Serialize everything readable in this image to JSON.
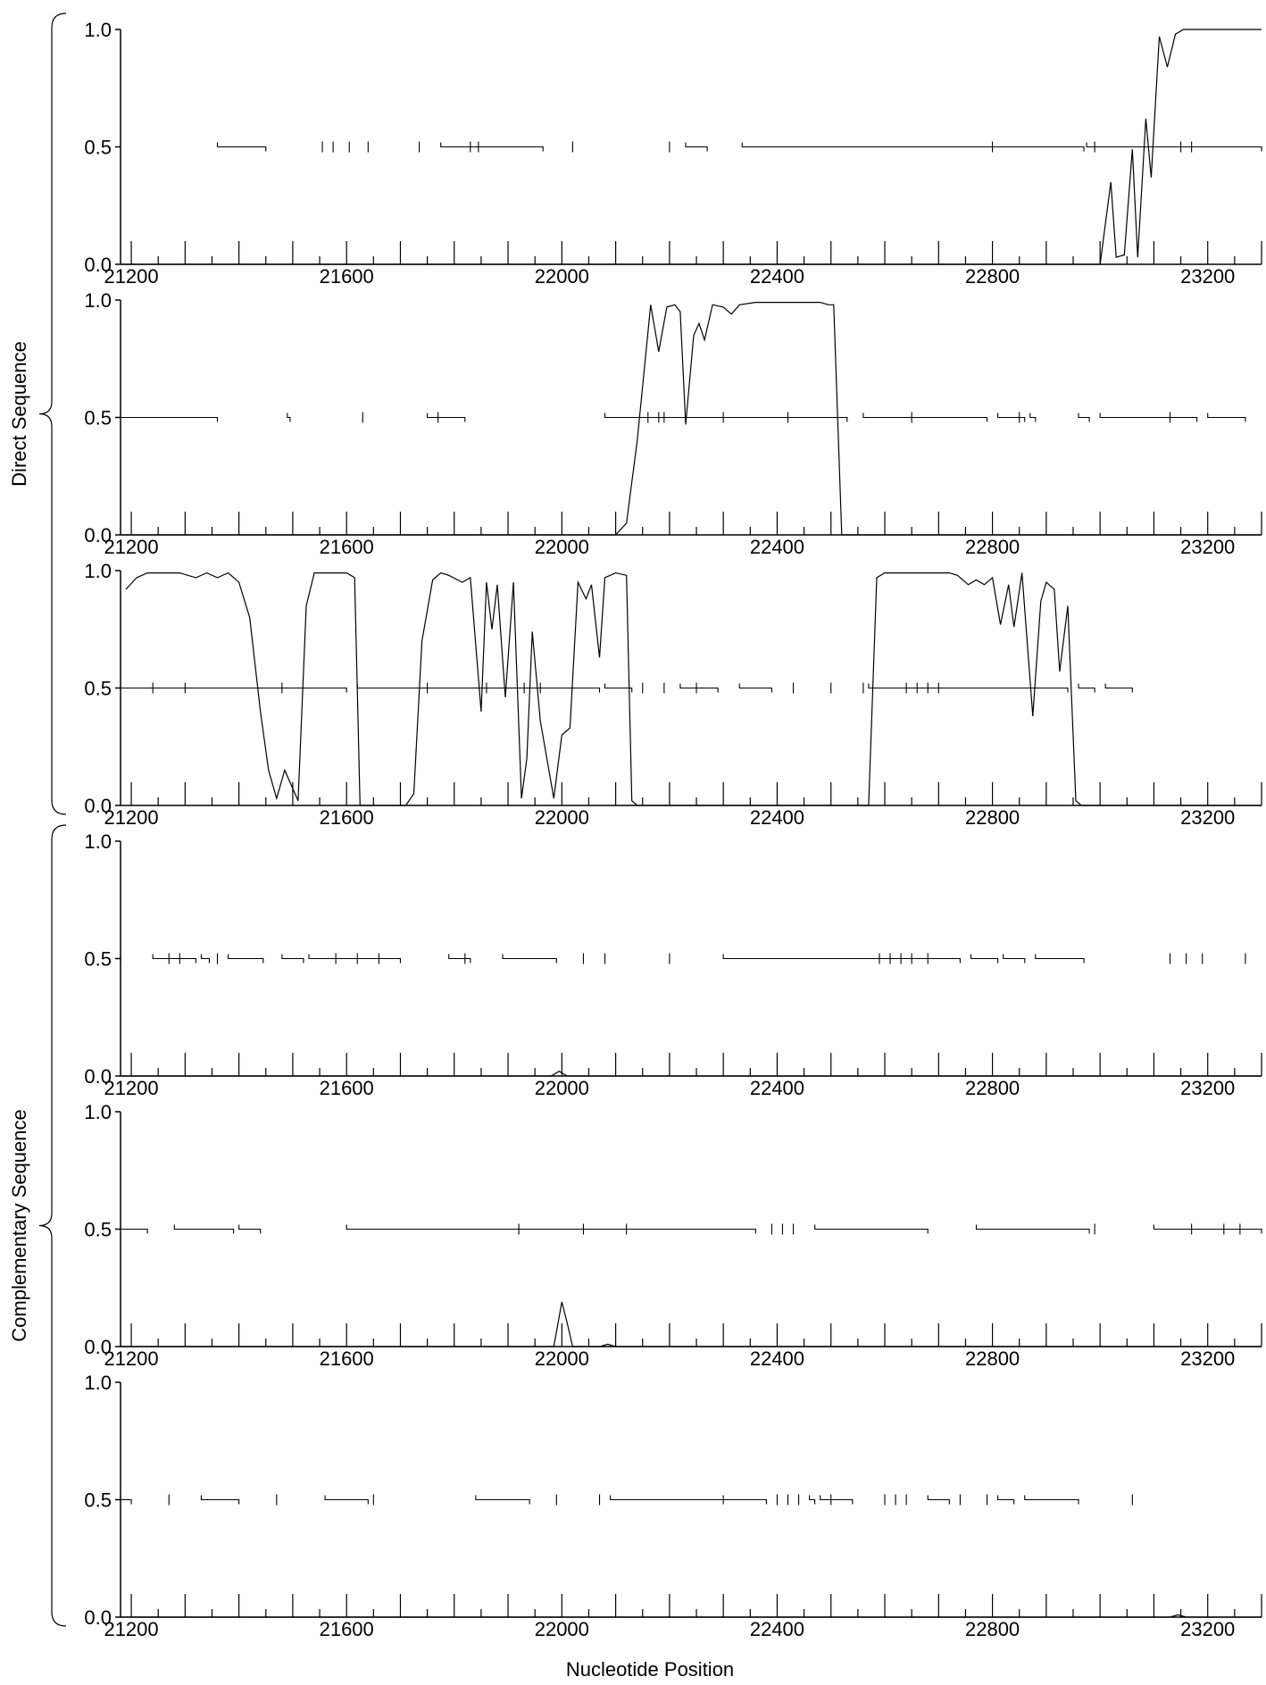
{
  "figure": {
    "xlabel": "Nucleotide Position",
    "groups": [
      {
        "label": "Direct Sequence",
        "panels": [
          0,
          1,
          2
        ]
      },
      {
        "label": "Complementary Sequence",
        "panels": [
          3,
          4,
          5
        ]
      }
    ]
  },
  "chart_data": [
    {
      "type": "line",
      "xlim": [
        21180,
        23300
      ],
      "ylim": [
        0.0,
        1.0
      ],
      "xticks": [
        21200,
        21600,
        22000,
        22400,
        22800,
        23200
      ],
      "xtick_labels": [
        "21200",
        "21600",
        "22000",
        "22400",
        "22800",
        "23200"
      ],
      "yticks": [
        0.0,
        0.5,
        1.0
      ],
      "ytick_labels": [
        "0.0",
        "0.5",
        "1.0"
      ],
      "curve": [
        [
          21180,
          0
        ],
        [
          23000,
          0
        ],
        [
          23020,
          0.35
        ],
        [
          23030,
          0.03
        ],
        [
          23045,
          0.04
        ],
        [
          23060,
          0.49
        ],
        [
          23070,
          0.03
        ],
        [
          23085,
          0.62
        ],
        [
          23095,
          0.37
        ],
        [
          23110,
          0.97
        ],
        [
          23125,
          0.84
        ],
        [
          23140,
          0.98
        ],
        [
          23155,
          1.0
        ],
        [
          23300,
          1.0
        ]
      ],
      "segments": [
        [
          21360,
          21450
        ],
        [
          21775,
          21965
        ],
        [
          22230,
          22270
        ],
        [
          22335,
          22970
        ],
        [
          22975,
          23300
        ]
      ],
      "spikes": [
        21555,
        21575,
        21605,
        21640,
        21735,
        21830,
        21845,
        22020,
        22200,
        22800,
        22990,
        23150,
        23170
      ]
    },
    {
      "type": "line",
      "xlim": [
        21180,
        23300
      ],
      "ylim": [
        0.0,
        1.0
      ],
      "xticks": [
        21200,
        21600,
        22000,
        22400,
        22800,
        23200
      ],
      "xtick_labels": [
        "21200",
        "21600",
        "22000",
        "22400",
        "22800",
        "23200"
      ],
      "yticks": [
        0.0,
        0.5,
        1.0
      ],
      "ytick_labels": [
        "0.0",
        "0.5",
        "1.0"
      ],
      "curve": [
        [
          21180,
          0
        ],
        [
          22100,
          0
        ],
        [
          22120,
          0.05
        ],
        [
          22140,
          0.4
        ],
        [
          22165,
          0.98
        ],
        [
          22180,
          0.78
        ],
        [
          22195,
          0.97
        ],
        [
          22210,
          0.98
        ],
        [
          22220,
          0.95
        ],
        [
          22230,
          0.47
        ],
        [
          22245,
          0.85
        ],
        [
          22255,
          0.9
        ],
        [
          22265,
          0.83
        ],
        [
          22280,
          0.98
        ],
        [
          22300,
          0.97
        ],
        [
          22315,
          0.94
        ],
        [
          22330,
          0.98
        ],
        [
          22360,
          0.99
        ],
        [
          22480,
          0.99
        ],
        [
          22495,
          0.98
        ],
        [
          22505,
          0.98
        ],
        [
          22520,
          0
        ],
        [
          23300,
          0
        ]
      ],
      "segments": [
        [
          21180,
          21360
        ],
        [
          21490,
          21495
        ],
        [
          21750,
          21820
        ],
        [
          22080,
          22530
        ],
        [
          22560,
          22790
        ],
        [
          22810,
          22860
        ],
        [
          22870,
          22880
        ],
        [
          22960,
          22980
        ],
        [
          23000,
          23180
        ],
        [
          23200,
          23270
        ]
      ],
      "spikes": [
        21630,
        21770,
        22160,
        22180,
        22190,
        22300,
        22420,
        22650,
        22850,
        23130
      ]
    },
    {
      "type": "line",
      "xlim": [
        21180,
        23300
      ],
      "ylim": [
        0.0,
        1.0
      ],
      "xticks": [
        21200,
        21600,
        22000,
        22400,
        22800,
        23200
      ],
      "xtick_labels": [
        "21200",
        "21600",
        "22000",
        "22400",
        "22800",
        "23200"
      ],
      "yticks": [
        0.0,
        0.5,
        1.0
      ],
      "ytick_labels": [
        "0.0",
        "0.5",
        "1.0"
      ],
      "curve": [
        [
          21190,
          0.92
        ],
        [
          21210,
          0.97
        ],
        [
          21230,
          0.99
        ],
        [
          21290,
          0.99
        ],
        [
          21305,
          0.98
        ],
        [
          21320,
          0.97
        ],
        [
          21340,
          0.99
        ],
        [
          21360,
          0.97
        ],
        [
          21380,
          0.99
        ],
        [
          21400,
          0.95
        ],
        [
          21420,
          0.8
        ],
        [
          21440,
          0.4
        ],
        [
          21455,
          0.15
        ],
        [
          21470,
          0.03
        ],
        [
          21485,
          0.15
        ],
        [
          21510,
          0.02
        ],
        [
          21525,
          0.85
        ],
        [
          21540,
          0.99
        ],
        [
          21600,
          0.99
        ],
        [
          21615,
          0.97
        ],
        [
          21625,
          0
        ],
        [
          21710,
          0
        ],
        [
          21725,
          0.05
        ],
        [
          21740,
          0.7
        ],
        [
          21760,
          0.96
        ],
        [
          21775,
          0.99
        ],
        [
          21790,
          0.98
        ],
        [
          21815,
          0.95
        ],
        [
          21830,
          0.97
        ],
        [
          21850,
          0.4
        ],
        [
          21860,
          0.95
        ],
        [
          21870,
          0.75
        ],
        [
          21880,
          0.94
        ],
        [
          21895,
          0.46
        ],
        [
          21910,
          0.95
        ],
        [
          21925,
          0.03
        ],
        [
          21935,
          0.2
        ],
        [
          21945,
          0.74
        ],
        [
          21960,
          0.36
        ],
        [
          21985,
          0.03
        ],
        [
          22000,
          0.3
        ],
        [
          22015,
          0.33
        ],
        [
          22030,
          0.95
        ],
        [
          22045,
          0.88
        ],
        [
          22055,
          0.94
        ],
        [
          22070,
          0.63
        ],
        [
          22080,
          0.97
        ],
        [
          22100,
          0.99
        ],
        [
          22120,
          0.98
        ],
        [
          22130,
          0.02
        ],
        [
          22140,
          0
        ],
        [
          22570,
          0
        ],
        [
          22585,
          0.97
        ],
        [
          22600,
          0.99
        ],
        [
          22720,
          0.99
        ],
        [
          22735,
          0.98
        ],
        [
          22755,
          0.94
        ],
        [
          22770,
          0.96
        ],
        [
          22785,
          0.94
        ],
        [
          22800,
          0.97
        ],
        [
          22815,
          0.77
        ],
        [
          22830,
          0.94
        ],
        [
          22840,
          0.76
        ],
        [
          22855,
          0.99
        ],
        [
          22875,
          0.38
        ],
        [
          22890,
          0.87
        ],
        [
          22900,
          0.95
        ],
        [
          22915,
          0.92
        ],
        [
          22925,
          0.57
        ],
        [
          22940,
          0.85
        ],
        [
          22955,
          0.02
        ],
        [
          22965,
          0
        ],
        [
          23300,
          0
        ]
      ],
      "segments": [
        [
          21180,
          21600
        ],
        [
          21620,
          22070
        ],
        [
          22080,
          22130
        ],
        [
          22220,
          22290
        ],
        [
          22330,
          22390
        ],
        [
          22570,
          22940
        ],
        [
          22960,
          22990
        ],
        [
          23010,
          23060
        ]
      ],
      "spikes": [
        21240,
        21300,
        21480,
        21750,
        21860,
        21930,
        21960,
        22150,
        22190,
        22250,
        22430,
        22500,
        22560,
        22640,
        22660,
        22680,
        22700
      ]
    },
    {
      "type": "line",
      "xlim": [
        21180,
        23300
      ],
      "ylim": [
        0.0,
        1.0
      ],
      "xticks": [
        21200,
        21600,
        22000,
        22400,
        22800,
        23200
      ],
      "xtick_labels": [
        "21200",
        "21600",
        "22000",
        "22400",
        "22800",
        "23200"
      ],
      "yticks": [
        0.0,
        0.5,
        1.0
      ],
      "ytick_labels": [
        "0.0",
        "0.5",
        "1.0"
      ],
      "curve": [
        [
          21180,
          0
        ],
        [
          21980,
          0
        ],
        [
          21995,
          0.02
        ],
        [
          22010,
          0
        ],
        [
          23300,
          0
        ]
      ],
      "segments": [
        [
          21240,
          21320
        ],
        [
          21330,
          21345
        ],
        [
          21380,
          21445
        ],
        [
          21480,
          21520
        ],
        [
          21530,
          21700
        ],
        [
          21790,
          21830
        ],
        [
          21890,
          21990
        ],
        [
          22300,
          22740
        ],
        [
          22760,
          22810
        ],
        [
          22820,
          22860
        ],
        [
          22880,
          22970
        ]
      ],
      "spikes": [
        21180,
        21270,
        21290,
        21360,
        21580,
        21620,
        21660,
        21820,
        22040,
        22080,
        22200,
        22590,
        22610,
        22630,
        22650,
        22680,
        23130,
        23160,
        23190,
        23270
      ]
    },
    {
      "type": "line",
      "xlim": [
        21180,
        23300
      ],
      "ylim": [
        0.0,
        1.0
      ],
      "xticks": [
        21200,
        21600,
        22000,
        22400,
        22800,
        23200
      ],
      "xtick_labels": [
        "21200",
        "21600",
        "22000",
        "22400",
        "22800",
        "23200"
      ],
      "yticks": [
        0.0,
        0.5,
        1.0
      ],
      "ytick_labels": [
        "0.0",
        "0.5",
        "1.0"
      ],
      "curve": [
        [
          21180,
          0
        ],
        [
          21985,
          0
        ],
        [
          22000,
          0.19
        ],
        [
          22010,
          0.1
        ],
        [
          22020,
          0
        ],
        [
          22070,
          0
        ],
        [
          22085,
          0.01
        ],
        [
          22100,
          0
        ],
        [
          23300,
          0
        ]
      ],
      "segments": [
        [
          21180,
          21230
        ],
        [
          21280,
          21390
        ],
        [
          21400,
          21440
        ],
        [
          21600,
          22360
        ],
        [
          22470,
          22680
        ],
        [
          22770,
          22980
        ],
        [
          23100,
          23300
        ]
      ],
      "spikes": [
        21920,
        22040,
        22120,
        22390,
        22410,
        22430,
        22990,
        23170,
        23230,
        23260
      ]
    },
    {
      "type": "line",
      "xlim": [
        21180,
        23300
      ],
      "ylim": [
        0.0,
        1.0
      ],
      "xticks": [
        21200,
        21600,
        22000,
        22400,
        22800,
        23200
      ],
      "xtick_labels": [
        "21200",
        "21600",
        "22000",
        "22400",
        "22800",
        "23200"
      ],
      "yticks": [
        0.0,
        0.5,
        1.0
      ],
      "ytick_labels": [
        "0.0",
        "0.5",
        "1.0"
      ],
      "curve": [
        [
          21180,
          0
        ],
        [
          23130,
          0
        ],
        [
          23145,
          0.01
        ],
        [
          23160,
          0
        ],
        [
          23300,
          0
        ]
      ],
      "segments": [
        [
          21180,
          21200
        ],
        [
          21330,
          21400
        ],
        [
          21560,
          21640
        ],
        [
          21840,
          21940
        ],
        [
          22090,
          22300
        ],
        [
          22300,
          22380
        ],
        [
          22460,
          22470
        ],
        [
          22480,
          22540
        ],
        [
          22680,
          22720
        ],
        [
          22810,
          22840
        ],
        [
          22860,
          22960
        ]
      ],
      "spikes": [
        21270,
        21470,
        21650,
        21990,
        22070,
        22400,
        22420,
        22440,
        22500,
        22600,
        22620,
        22640,
        22740,
        22790,
        23060
      ]
    }
  ]
}
